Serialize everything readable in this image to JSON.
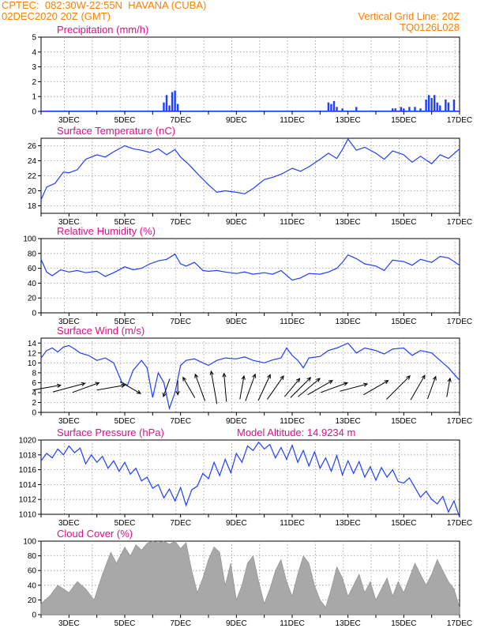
{
  "header": {
    "line1_left": "CPTEC:  082:30W-22:55N  HAVANA (CUBA)",
    "line2_left": "02DEC2020 20Z (GMT)",
    "line1_right": "Vertical Grid Line: 20Z",
    "line2_right": "TQ0126L028"
  },
  "colors": {
    "header": "#ff7f00",
    "title": "#e0108a",
    "series": "#1f3fff",
    "cloud": "#a8a8a8",
    "wind_arrow": "#000000"
  },
  "chart_data": [
    {
      "type": "bar",
      "title": "Precipitation (mm/h)",
      "x_ticks": [
        "3DEC",
        "5DEC",
        "7DEC",
        "9DEC",
        "11DEC",
        "13DEC",
        "15DEC",
        "17DEC"
      ],
      "ylim": [
        0,
        5
      ],
      "y_ticks": [
        "0",
        "1",
        "2",
        "3",
        "4",
        "5"
      ],
      "x": [
        6.4,
        6.5,
        6.6,
        6.7,
        6.8,
        6.9,
        12.3,
        12.4,
        12.5,
        12.6,
        12.8,
        13.3,
        14.6,
        14.7,
        14.9,
        15.0,
        15.2,
        15.4,
        15.6,
        15.8,
        15.9,
        16.0,
        16.1,
        16.2,
        16.3,
        16.5,
        16.6,
        16.8
      ],
      "values": [
        0.6,
        1.1,
        0.4,
        1.3,
        1.4,
        0.5,
        0.6,
        0.5,
        0.7,
        0.3,
        0.2,
        0.3,
        0.2,
        0.2,
        0.3,
        0.2,
        0.3,
        0.3,
        0.2,
        0.8,
        1.1,
        0.9,
        1.1,
        0.6,
        0.4,
        0.8,
        0.6,
        0.8
      ]
    },
    {
      "type": "line",
      "title": "Surface Temperature (nC)",
      "x_ticks": [
        "3DEC",
        "5DEC",
        "7DEC",
        "9DEC",
        "11DEC",
        "13DEC",
        "15DEC",
        "17DEC"
      ],
      "ylim": [
        17,
        27
      ],
      "y_ticks": [
        "18",
        "20",
        "22",
        "24",
        "26"
      ],
      "x": [
        2.0,
        2.2,
        2.5,
        2.8,
        3.0,
        3.3,
        3.6,
        4.0,
        4.3,
        4.6,
        5.0,
        5.3,
        5.6,
        5.9,
        6.2,
        6.5,
        6.8,
        7.0,
        7.3,
        7.6,
        8.0,
        8.3,
        8.6,
        9.0,
        9.3,
        9.6,
        10.0,
        10.3,
        10.6,
        11.0,
        11.3,
        11.6,
        12.0,
        12.3,
        12.6,
        12.8,
        13.0,
        13.3,
        13.6,
        14.0,
        14.3,
        14.6,
        15.0,
        15.3,
        15.6,
        16.0,
        16.3,
        16.6,
        17.0
      ],
      "values": [
        18.8,
        20.5,
        21.0,
        22.5,
        22.4,
        22.8,
        24.2,
        24.8,
        24.5,
        25.2,
        26.0,
        25.6,
        25.4,
        25.1,
        25.6,
        24.8,
        25.5,
        24.5,
        23.5,
        22.3,
        20.8,
        19.8,
        20.0,
        19.8,
        19.6,
        20.3,
        21.5,
        21.8,
        22.2,
        23.0,
        22.6,
        23.2,
        24.2,
        25.0,
        24.3,
        25.5,
        26.9,
        25.4,
        25.8,
        25.0,
        24.2,
        25.3,
        24.8,
        23.8,
        24.6,
        23.6,
        24.8,
        24.3,
        25.6
      ]
    },
    {
      "type": "line",
      "title": "Relative Humidity (%)",
      "x_ticks": [
        "3DEC",
        "5DEC",
        "7DEC",
        "9DEC",
        "11DEC",
        "13DEC",
        "15DEC",
        "17DEC"
      ],
      "ylim": [
        0,
        100
      ],
      "y_ticks": [
        "0",
        "20",
        "40",
        "60",
        "80",
        "100"
      ],
      "x": [
        2.0,
        2.2,
        2.4,
        2.7,
        3.0,
        3.3,
        3.6,
        4.0,
        4.3,
        4.6,
        5.0,
        5.3,
        5.6,
        5.9,
        6.2,
        6.5,
        6.8,
        7.0,
        7.2,
        7.5,
        7.8,
        8.0,
        8.3,
        8.6,
        9.0,
        9.3,
        9.6,
        10.0,
        10.3,
        10.6,
        11.0,
        11.3,
        11.6,
        12.0,
        12.3,
        12.6,
        12.8,
        13.0,
        13.3,
        13.6,
        14.0,
        14.3,
        14.6,
        15.0,
        15.3,
        15.6,
        16.0,
        16.3,
        16.6,
        17.0
      ],
      "values": [
        72,
        55,
        50,
        58,
        55,
        57,
        54,
        56,
        49,
        54,
        62,
        58,
        60,
        66,
        70,
        72,
        79,
        66,
        63,
        68,
        57,
        56,
        57,
        55,
        53,
        55,
        52,
        54,
        52,
        57,
        44,
        47,
        53,
        52,
        55,
        60,
        68,
        78,
        73,
        66,
        63,
        57,
        71,
        69,
        64,
        72,
        68,
        76,
        74,
        64
      ]
    },
    {
      "type": "line",
      "title": "Surface Wind (m/s)",
      "x_ticks": [
        "3DEC",
        "5DEC",
        "7DEC",
        "9DEC",
        "11DEC",
        "13DEC",
        "15DEC",
        "17DEC"
      ],
      "ylim": [
        0,
        15
      ],
      "y_ticks": [
        "0",
        "2",
        "4",
        "6",
        "8",
        "10",
        "12",
        "14"
      ],
      "x": [
        2.0,
        2.2,
        2.4,
        2.6,
        2.8,
        3.0,
        3.2,
        3.4,
        3.7,
        4.0,
        4.3,
        4.6,
        4.9,
        5.1,
        5.3,
        5.6,
        5.8,
        6.0,
        6.2,
        6.4,
        6.6,
        6.8,
        7.0,
        7.2,
        7.5,
        7.8,
        8.0,
        8.3,
        8.6,
        9.0,
        9.3,
        9.6,
        10.0,
        10.3,
        10.6,
        10.8,
        11.0,
        11.2,
        11.4,
        11.6,
        12.0,
        12.3,
        12.6,
        13.0,
        13.3,
        13.6,
        14.0,
        14.3,
        14.6,
        15.0,
        15.3,
        15.6,
        16.0,
        16.3,
        16.6,
        17.0
      ],
      "values": [
        11.0,
        12.5,
        13.0,
        12.2,
        13.2,
        13.5,
        12.8,
        12.0,
        11.5,
        10.5,
        11.0,
        10.0,
        6.0,
        5.5,
        8.5,
        10.5,
        9.0,
        3.0,
        8.0,
        6.0,
        0.8,
        4.0,
        9.5,
        10.5,
        10.8,
        10.0,
        9.5,
        10.5,
        11.0,
        10.8,
        11.2,
        10.5,
        10.0,
        10.6,
        11.0,
        13.0,
        11.5,
        10.5,
        9.0,
        11.0,
        11.3,
        12.5,
        13.0,
        14.0,
        12.0,
        13.0,
        12.5,
        11.8,
        12.8,
        13.0,
        11.5,
        12.5,
        12.0,
        10.5,
        9.0,
        6.5
      ],
      "arrows": {
        "x": [
          2.2,
          3.0,
          3.6,
          4.5,
          5.2,
          6.5,
          6.9,
          7.3,
          7.7,
          8.2,
          8.6,
          9.2,
          9.5,
          10.0,
          10.4,
          11.0,
          11.3,
          11.6,
          12.0,
          12.5,
          13.2,
          14.0,
          14.8,
          15.5,
          16.0,
          16.6
        ],
        "speed": [
          6,
          7,
          6,
          6,
          5,
          4,
          3,
          5,
          6,
          7,
          6,
          5,
          6,
          6,
          6,
          5,
          6,
          6,
          6,
          6,
          6,
          6,
          7,
          6,
          5,
          4
        ],
        "dir_deg": [
          80,
          75,
          70,
          80,
          120,
          200,
          180,
          330,
          340,
          350,
          355,
          10,
          20,
          25,
          35,
          40,
          45,
          50,
          60,
          70,
          75,
          60,
          45,
          30,
          20,
          10
        ]
      }
    },
    {
      "type": "line",
      "title": "Surface Pressure (hPa)",
      "annotation": "Model Altitude: 14.9234 m",
      "x_ticks": [
        "3DEC",
        "5DEC",
        "7DEC",
        "9DEC",
        "11DEC",
        "13DEC",
        "15DEC",
        "17DEC"
      ],
      "ylim": [
        1010,
        1020
      ],
      "y_ticks": [
        "1010",
        "1012",
        "1014",
        "1016",
        "1018",
        "1020"
      ],
      "x": [
        2.0,
        2.2,
        2.4,
        2.6,
        2.8,
        3.0,
        3.2,
        3.4,
        3.6,
        3.8,
        4.0,
        4.2,
        4.4,
        4.6,
        4.8,
        5.0,
        5.2,
        5.4,
        5.6,
        5.8,
        6.0,
        6.2,
        6.4,
        6.6,
        6.8,
        7.0,
        7.2,
        7.4,
        7.6,
        7.8,
        8.0,
        8.2,
        8.4,
        8.6,
        8.8,
        9.0,
        9.2,
        9.4,
        9.6,
        9.8,
        10.0,
        10.2,
        10.4,
        10.6,
        10.8,
        11.0,
        11.2,
        11.4,
        11.6,
        11.8,
        12.0,
        12.2,
        12.4,
        12.6,
        12.8,
        13.0,
        13.2,
        13.4,
        13.6,
        13.8,
        14.0,
        14.2,
        14.4,
        14.6,
        14.8,
        15.0,
        15.2,
        15.4,
        15.6,
        15.8,
        16.0,
        16.2,
        16.4,
        16.6,
        16.8,
        17.0
      ],
      "values": [
        1017.2,
        1018.2,
        1017.6,
        1018.8,
        1018.0,
        1019.2,
        1018.3,
        1018.9,
        1016.8,
        1018.0,
        1017.0,
        1017.8,
        1016.2,
        1017.2,
        1015.8,
        1017.0,
        1015.4,
        1016.2,
        1014.5,
        1015.0,
        1013.5,
        1014.0,
        1012.2,
        1013.4,
        1011.8,
        1013.6,
        1011.2,
        1013.3,
        1013.8,
        1015.5,
        1014.8,
        1017.0,
        1015.2,
        1017.4,
        1015.6,
        1018.2,
        1017.0,
        1019.2,
        1018.6,
        1019.7,
        1018.8,
        1019.4,
        1017.6,
        1019.0,
        1017.4,
        1019.3,
        1017.0,
        1018.6,
        1016.5,
        1018.4,
        1016.2,
        1017.6,
        1015.8,
        1017.9,
        1015.3,
        1017.2,
        1015.5,
        1017.1,
        1015.0,
        1016.4,
        1014.6,
        1016.3,
        1015.0,
        1016.0,
        1014.4,
        1014.2,
        1014.9,
        1013.6,
        1012.3,
        1013.1,
        1012.0,
        1011.4,
        1012.4,
        1010.3,
        1011.8,
        1009.6
      ]
    },
    {
      "type": "area",
      "title": "Cloud Cover (%)",
      "x_ticks": [
        "3DEC",
        "5DEC",
        "7DEC",
        "9DEC",
        "11DEC",
        "13DEC",
        "15DEC",
        "17DEC"
      ],
      "ylim": [
        0,
        100
      ],
      "y_ticks": [
        "0",
        "20",
        "40",
        "60",
        "80",
        "100"
      ],
      "x": [
        2.0,
        2.3,
        2.6,
        3.0,
        3.3,
        3.6,
        3.9,
        4.2,
        4.5,
        4.7,
        5.0,
        5.2,
        5.4,
        5.6,
        5.8,
        6.0,
        6.2,
        6.4,
        6.6,
        6.8,
        7.0,
        7.2,
        7.4,
        7.6,
        7.8,
        8.0,
        8.2,
        8.4,
        8.6,
        8.8,
        9.0,
        9.2,
        9.4,
        9.6,
        9.8,
        10.0,
        10.2,
        10.4,
        10.6,
        10.8,
        11.0,
        11.2,
        11.4,
        11.6,
        11.8,
        12.0,
        12.2,
        12.4,
        12.6,
        12.8,
        13.0,
        13.2,
        13.4,
        13.6,
        13.8,
        14.0,
        14.2,
        14.4,
        14.6,
        14.8,
        15.0,
        15.2,
        15.4,
        15.6,
        15.8,
        16.0,
        16.2,
        16.4,
        16.6,
        16.8,
        17.0
      ],
      "values": [
        15,
        25,
        40,
        30,
        45,
        35,
        20,
        55,
        85,
        70,
        92,
        80,
        95,
        88,
        97,
        100,
        98,
        100,
        96,
        100,
        90,
        98,
        60,
        30,
        50,
        75,
        92,
        85,
        40,
        70,
        20,
        40,
        70,
        80,
        45,
        15,
        35,
        60,
        75,
        45,
        25,
        55,
        80,
        70,
        40,
        20,
        10,
        35,
        65,
        50,
        25,
        40,
        55,
        30,
        45,
        20,
        35,
        50,
        25,
        45,
        30,
        50,
        70,
        55,
        40,
        55,
        75,
        60,
        45,
        35,
        10
      ]
    }
  ]
}
